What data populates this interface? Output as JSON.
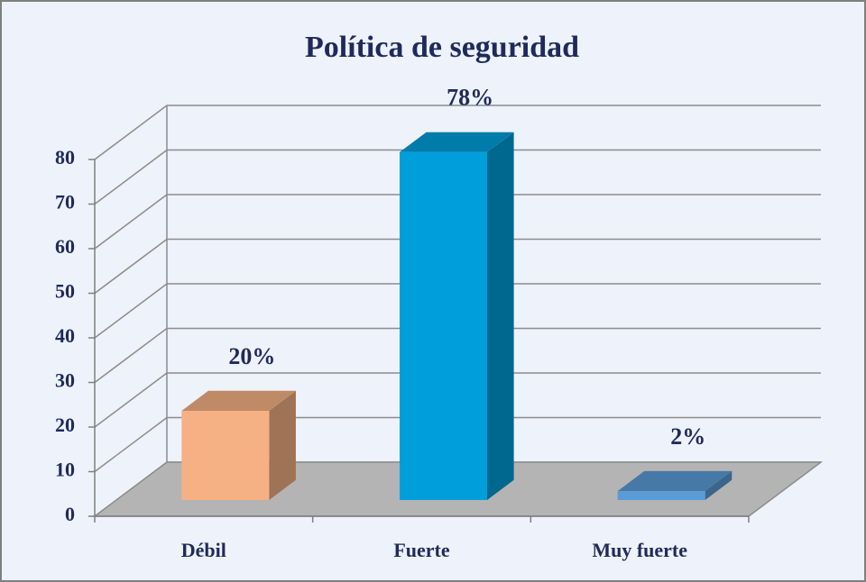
{
  "chart_data": {
    "type": "bar3d",
    "title": "Política de seguridad",
    "categories": [
      "Débil",
      "Fuerte",
      "Muy fuerte"
    ],
    "values": [
      20,
      78,
      2
    ],
    "value_labels": [
      "20%",
      "78%",
      "2%"
    ],
    "colors": [
      "#f5b183",
      "#009fdb",
      "#5b9bd5"
    ],
    "ylim": [
      0,
      80
    ],
    "yticks": [
      0,
      10,
      20,
      30,
      40,
      50,
      60,
      70,
      80
    ],
    "grid": true
  }
}
